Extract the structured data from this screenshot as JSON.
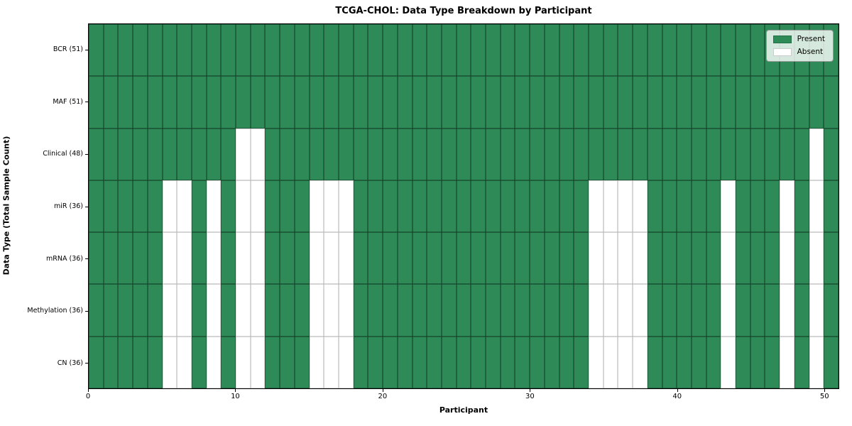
{
  "chart": {
    "title": "TCGA-CHOL: Data Type Breakdown by Participant",
    "xlabel": "Participant",
    "ylabel": "Data Type (Total Sample Count)"
  },
  "legend": {
    "items": [
      {
        "label": "Present",
        "color": "#2e8b57"
      },
      {
        "label": "Absent",
        "color": "#ffffff"
      }
    ]
  },
  "chart_data": {
    "type": "heatmap",
    "title": "TCGA-CHOL: Data Type Breakdown by Participant",
    "xlabel": "Participant",
    "ylabel": "Data Type (Total Sample Count)",
    "n_participants": 51,
    "x_range": [
      0,
      51
    ],
    "x_ticks": [
      0,
      10,
      20,
      30,
      40,
      50
    ],
    "colors": {
      "present": "#2e8b57",
      "absent": "#ffffff"
    },
    "legend_entries": [
      "Present",
      "Absent"
    ],
    "legend_position": "upper right",
    "grid": true,
    "rows": [
      {
        "label": "BCR (51)",
        "present_count": 51,
        "absent_participants": []
      },
      {
        "label": "MAF (51)",
        "present_count": 51,
        "absent_participants": []
      },
      {
        "label": "Clinical (48)",
        "present_count": 48,
        "absent_participants": [
          10,
          11,
          49
        ]
      },
      {
        "label": "miR (36)",
        "present_count": 36,
        "absent_participants": [
          5,
          6,
          8,
          10,
          11,
          15,
          16,
          17,
          34,
          35,
          36,
          37,
          43,
          47,
          49
        ]
      },
      {
        "label": "mRNA (36)",
        "present_count": 36,
        "absent_participants": [
          5,
          6,
          8,
          10,
          11,
          15,
          16,
          17,
          34,
          35,
          36,
          37,
          43,
          47,
          49
        ]
      },
      {
        "label": "Methylation (36)",
        "present_count": 36,
        "absent_participants": [
          5,
          6,
          8,
          10,
          11,
          15,
          16,
          17,
          34,
          35,
          36,
          37,
          43,
          47,
          49
        ]
      },
      {
        "label": "CN (36)",
        "present_count": 36,
        "absent_participants": [
          5,
          6,
          8,
          10,
          11,
          15,
          16,
          17,
          34,
          35,
          36,
          37,
          43,
          47,
          49
        ]
      }
    ]
  }
}
